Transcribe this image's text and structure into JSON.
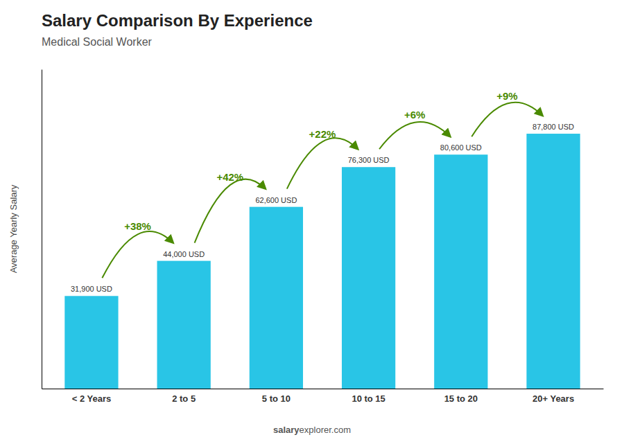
{
  "chart_data": {
    "type": "bar",
    "title": "Salary Comparison By Experience",
    "subtitle": "Medical Social Worker",
    "ylabel": "Average Yearly Salary",
    "categories": [
      "< 2 Years",
      "2 to 5",
      "5 to 10",
      "10 to 15",
      "15 to 20",
      "20+ Years"
    ],
    "values": [
      31900,
      44000,
      62600,
      76300,
      80600,
      87800
    ],
    "value_labels": [
      "31,900 USD",
      "44,000 USD",
      "62,600 USD",
      "76,300 USD",
      "80,600 USD",
      "87,800 USD"
    ],
    "data_labels": true,
    "annotations": [
      "+38%",
      "+42%",
      "+22%",
      "+6%",
      "+9%"
    ],
    "footer": [
      "salary",
      "explorer.com"
    ],
    "color": "#29c5e6",
    "ylim": [
      0,
      110000
    ],
    "yticks": [],
    "grid": false,
    "tick_labels": "x"
  }
}
